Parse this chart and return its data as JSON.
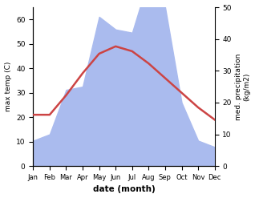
{
  "months": [
    "Jan",
    "Feb",
    "Mar",
    "Apr",
    "May",
    "Jun",
    "Jul",
    "Aug",
    "Sep",
    "Oct",
    "Nov",
    "Dec"
  ],
  "temperature": [
    21,
    21,
    29,
    38,
    46,
    49,
    47,
    42,
    36,
    30,
    24,
    19
  ],
  "precipitation": [
    8,
    10,
    24,
    25,
    47,
    43,
    42,
    59,
    50,
    20,
    8,
    6
  ],
  "temp_color": "#cc4444",
  "precip_color": "#aabbee",
  "temp_lw": 1.8,
  "temp_ylim": [
    0,
    65
  ],
  "precip_ylim": [
    0,
    50
  ],
  "temp_yticks": [
    0,
    10,
    20,
    30,
    40,
    50,
    60
  ],
  "precip_yticks": [
    0,
    10,
    20,
    30,
    40,
    50
  ],
  "xlabel": "date (month)",
  "ylabel_left": "max temp (C)",
  "ylabel_right": "med. precipitation\n(kg/m2)",
  "fig_width": 3.18,
  "fig_height": 2.47,
  "dpi": 100
}
